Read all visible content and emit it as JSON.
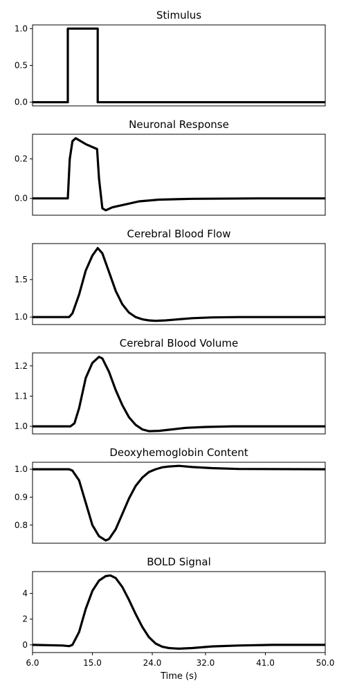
{
  "chart_data": [
    {
      "type": "line",
      "title": "Stimulus",
      "ylim": [
        -0.05,
        1.05
      ],
      "yticks": [
        {
          "value": 0.0,
          "label": "0.0"
        },
        {
          "value": 0.5,
          "label": "0.5"
        },
        {
          "value": 1.0,
          "label": "1.0"
        }
      ],
      "x": [
        6.0,
        11.3,
        11.3,
        15.8,
        15.8,
        50.0
      ],
      "y": [
        0.0,
        0.0,
        1.0,
        1.0,
        0.0,
        0.0
      ]
    },
    {
      "type": "line",
      "title": "Neuronal Response",
      "ylim": [
        -0.085,
        0.325
      ],
      "yticks": [
        {
          "value": 0.0,
          "label": "0.0"
        },
        {
          "value": 0.2,
          "label": "0.2"
        }
      ],
      "x": [
        6.0,
        11.3,
        11.6,
        12.0,
        12.5,
        13.0,
        14.0,
        15.0,
        15.7,
        16.0,
        16.5,
        17.0,
        18.0,
        20.0,
        22.0,
        25.0,
        30.0,
        40.0,
        50.0
      ],
      "y": [
        0.0,
        0.0,
        0.2,
        0.29,
        0.305,
        0.295,
        0.275,
        0.26,
        0.25,
        0.1,
        -0.05,
        -0.06,
        -0.045,
        -0.03,
        -0.015,
        -0.006,
        -0.002,
        0.0,
        0.0
      ]
    },
    {
      "type": "line",
      "title": "Cerebral Blood Flow",
      "ylim": [
        0.9,
        1.98
      ],
      "yticks": [
        {
          "value": 1.0,
          "label": "1.0"
        },
        {
          "value": 1.5,
          "label": "1.5"
        }
      ],
      "x": [
        6.0,
        11.5,
        12.0,
        13.0,
        14.0,
        15.0,
        15.8,
        16.5,
        17.5,
        18.5,
        19.5,
        20.5,
        21.5,
        22.5,
        23.5,
        24.5,
        26.0,
        28.0,
        30.0,
        33.0,
        37.0,
        50.0
      ],
      "y": [
        1.0,
        1.0,
        1.05,
        1.3,
        1.62,
        1.82,
        1.92,
        1.85,
        1.6,
        1.35,
        1.17,
        1.06,
        1.0,
        0.97,
        0.955,
        0.95,
        0.955,
        0.97,
        0.985,
        0.995,
        1.0,
        1.0
      ]
    },
    {
      "type": "line",
      "title": "Cerebral Blood Volume",
      "ylim": [
        0.975,
        1.243
      ],
      "yticks": [
        {
          "value": 1.0,
          "label": "1.0"
        },
        {
          "value": 1.1,
          "label": "1.1"
        },
        {
          "value": 1.2,
          "label": "1.2"
        }
      ],
      "x": [
        6.0,
        11.7,
        12.3,
        13.0,
        14.0,
        15.0,
        16.0,
        16.5,
        17.5,
        18.5,
        19.5,
        20.5,
        21.5,
        22.5,
        23.5,
        25.0,
        27.0,
        29.0,
        32.0,
        36.0,
        50.0
      ],
      "y": [
        1.0,
        1.0,
        1.01,
        1.06,
        1.16,
        1.21,
        1.23,
        1.225,
        1.18,
        1.12,
        1.07,
        1.03,
        1.005,
        0.99,
        0.984,
        0.985,
        0.99,
        0.995,
        0.998,
        1.0,
        1.0
      ]
    },
    {
      "type": "line",
      "title": "Deoxyhemoglobin Content",
      "ylim": [
        0.735,
        1.025
      ],
      "yticks": [
        {
          "value": 0.8,
          "label": "0.8"
        },
        {
          "value": 0.9,
          "label": "0.9"
        },
        {
          "value": 1.0,
          "label": "1.0"
        }
      ],
      "x": [
        6.0,
        11.5,
        12.0,
        13.0,
        14.0,
        15.0,
        16.0,
        17.0,
        17.5,
        18.5,
        19.5,
        20.5,
        21.5,
        22.5,
        23.5,
        24.5,
        25.5,
        26.5,
        28.0,
        30.0,
        33.0,
        37.0,
        50.0
      ],
      "y": [
        1.0,
        1.0,
        0.995,
        0.96,
        0.88,
        0.8,
        0.76,
        0.745,
        0.75,
        0.785,
        0.84,
        0.895,
        0.94,
        0.97,
        0.99,
        1.0,
        1.007,
        1.01,
        1.012,
        1.008,
        1.004,
        1.001,
        1.0
      ]
    },
    {
      "type": "line",
      "title": "BOLD Signal",
      "xlabel": "Time (s)",
      "ylim": [
        -0.6,
        5.7
      ],
      "yticks": [
        {
          "value": 0,
          "label": "0"
        },
        {
          "value": 2,
          "label": "2"
        },
        {
          "value": 4,
          "label": "4"
        }
      ],
      "xticks": [
        {
          "value": 6.0,
          "label": "6.0"
        },
        {
          "value": 15.0,
          "label": "15.0"
        },
        {
          "value": 24.0,
          "label": "24.0"
        },
        {
          "value": 32.0,
          "label": "32.0"
        },
        {
          "value": 41.0,
          "label": "41.0"
        },
        {
          "value": 50.0,
          "label": "50.0"
        }
      ],
      "x": [
        6.0,
        10.5,
        11.5,
        12.0,
        13.0,
        14.0,
        15.0,
        16.0,
        17.0,
        17.7,
        18.5,
        19.5,
        20.5,
        21.5,
        22.5,
        23.5,
        24.5,
        25.5,
        26.5,
        28.0,
        30.0,
        33.0,
        37.0,
        42.0,
        50.0
      ],
      "y": [
        0.0,
        -0.05,
        -0.1,
        0.0,
        1.0,
        2.8,
        4.2,
        5.0,
        5.35,
        5.4,
        5.2,
        4.5,
        3.5,
        2.4,
        1.4,
        0.6,
        0.1,
        -0.15,
        -0.25,
        -0.3,
        -0.25,
        -0.12,
        -0.05,
        0.0,
        0.0
      ]
    }
  ]
}
